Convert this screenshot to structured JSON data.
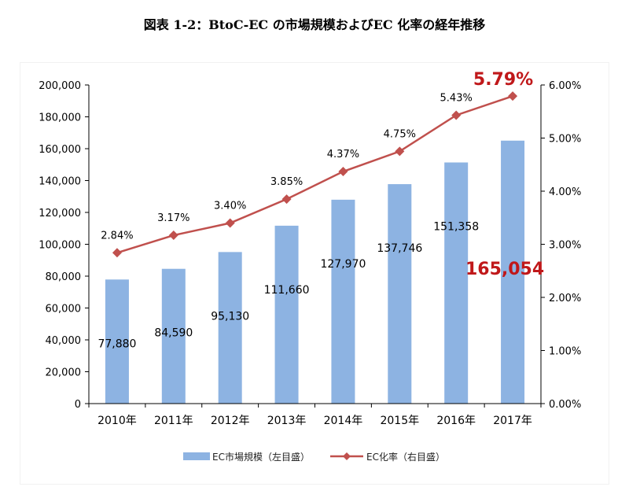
{
  "page": {
    "title": "図表 1-2：BtoC-EC の市場規模およびEC 化率の経年推移"
  },
  "colors": {
    "bar": "#8db3e2",
    "line": "#c0504d",
    "highlight": "#c0181a",
    "axis": "#000000",
    "grid": "#bfbfbf"
  },
  "chart_data": {
    "type": "bar+line",
    "title": "図表 1-2：BtoC-EC の市場規模およびEC 化率の経年推移",
    "categories": [
      "2010年",
      "2011年",
      "2012年",
      "2013年",
      "2014年",
      "2015年",
      "2016年",
      "2017年"
    ],
    "series": [
      {
        "name": "EC市場規模（左目盛）",
        "type": "bar",
        "axis": "left",
        "values": [
          77880,
          84590,
          95130,
          111660,
          127970,
          137746,
          151358,
          165054
        ],
        "labels": [
          "77,880",
          "84,590",
          "95,130",
          "111,660",
          "127,970",
          "137,746",
          "151,358",
          "165,054"
        ]
      },
      {
        "name": "EC化率（右目盛）",
        "type": "line",
        "axis": "right",
        "values": [
          2.84,
          3.17,
          3.4,
          3.85,
          4.37,
          4.75,
          5.43,
          5.79
        ],
        "labels": [
          "2.84%",
          "3.17%",
          "3.40%",
          "3.85%",
          "4.37%",
          "4.75%",
          "5.43%",
          "5.79%"
        ]
      }
    ],
    "left_axis": {
      "min": 0,
      "max": 200000,
      "ticks": [
        "0",
        "20,000",
        "40,000",
        "60,000",
        "80,000",
        "100,000",
        "120,000",
        "140,000",
        "160,000",
        "180,000",
        "200,000"
      ]
    },
    "right_axis": {
      "min": 0,
      "max": 6,
      "ticks": [
        "0.00%",
        "1.00%",
        "2.00%",
        "3.00%",
        "4.00%",
        "5.00%",
        "6.00%"
      ]
    },
    "highlight_index": 7,
    "legend": {
      "position": "bottom",
      "bar_label": "EC市場規模（左目盛）",
      "line_label": "EC化率（右目盛）"
    }
  }
}
